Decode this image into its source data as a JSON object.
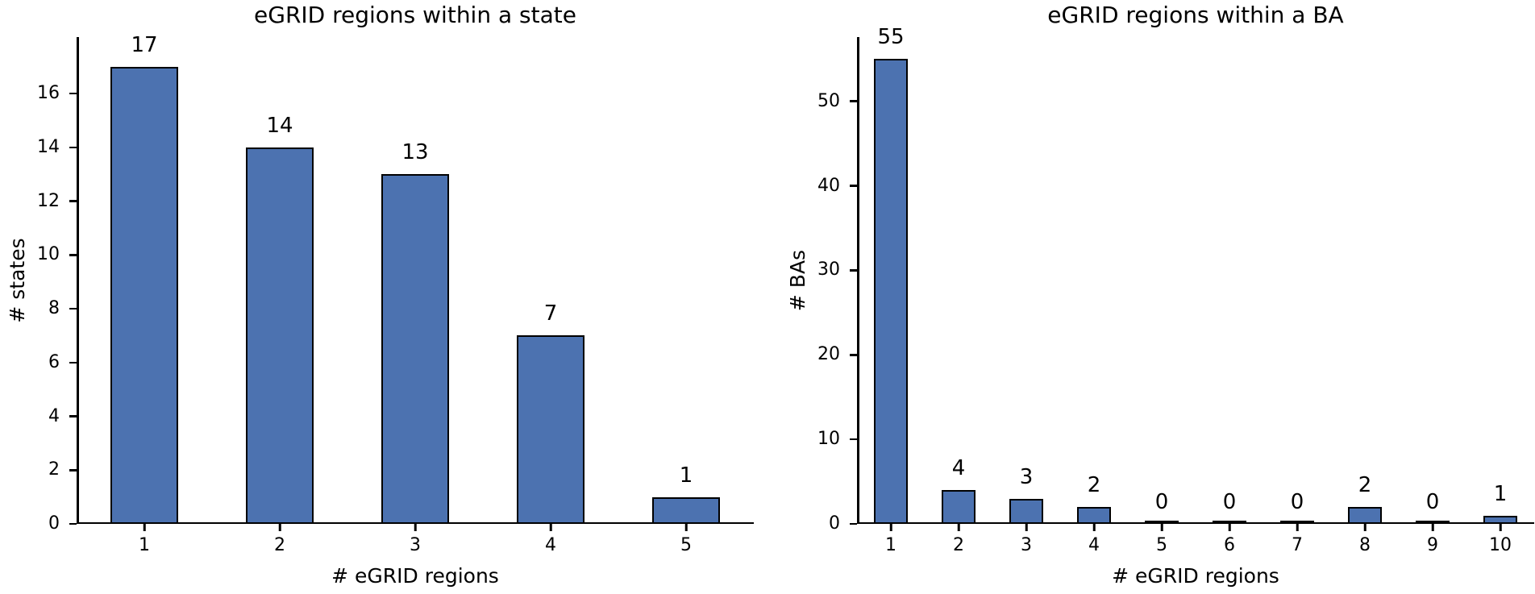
{
  "figure": {
    "background": "#ffffff",
    "text_color": "#000000"
  },
  "chart_data": [
    {
      "type": "bar",
      "title": "eGRID regions within a state",
      "xlabel": "# eGRID regions",
      "ylabel": "# states",
      "categories": [
        "1",
        "2",
        "3",
        "4",
        "5"
      ],
      "values": [
        17,
        14,
        13,
        7,
        1
      ],
      "bar_labels": [
        "17",
        "14",
        "13",
        "7",
        "1"
      ],
      "yticks": [
        0,
        2,
        4,
        6,
        8,
        10,
        12,
        14,
        16
      ],
      "ylim": [
        0,
        18.1
      ],
      "bar_color": "#4c72b0",
      "bar_edge_color": "#000000",
      "grid": false,
      "legend": "none"
    },
    {
      "type": "bar",
      "title": "eGRID regions within a BA",
      "xlabel": "# eGRID regions",
      "ylabel": "# BAs",
      "categories": [
        "1",
        "2",
        "3",
        "4",
        "5",
        "6",
        "7",
        "8",
        "9",
        "10"
      ],
      "values": [
        55,
        4,
        3,
        2,
        0,
        0,
        0,
        2,
        0,
        1
      ],
      "bar_labels": [
        "55",
        "4",
        "3",
        "2",
        "0",
        "0",
        "0",
        "2",
        "0",
        "1"
      ],
      "yticks": [
        0,
        10,
        20,
        30,
        40,
        50
      ],
      "ylim": [
        0,
        57.6
      ],
      "bar_color": "#4c72b0",
      "bar_edge_color": "#000000",
      "grid": false,
      "legend": "none"
    }
  ]
}
